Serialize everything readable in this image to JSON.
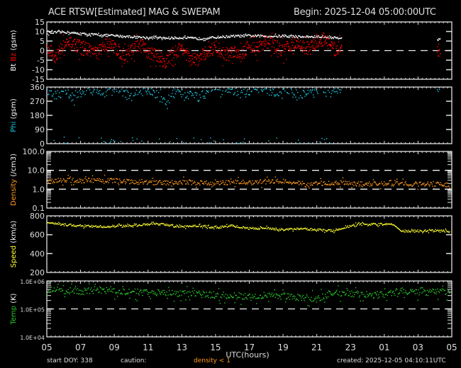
{
  "header": {
    "title": "ACE RTSW[Estimated] MAG & SWEPAM",
    "begin": "Begin: 2025-12-04 05:00:00UTC"
  },
  "footer": {
    "start_doy": "start DOY: 338",
    "caution_label": "caution:",
    "caution_text": "density < 1",
    "created": "created: 2025-12-05 04:10:11UTC"
  },
  "colors": {
    "background": "#000000",
    "axis": "#e0e0e0",
    "bt": "#ffffff",
    "bz": "#ff0000",
    "phi": "#1ec8e6",
    "density": "#ff9a1e",
    "speed": "#ffff32",
    "temp": "#28c828",
    "caution": "#ff9a1e"
  },
  "chart_data": [
    {
      "type": "scatter",
      "panel": "mag",
      "ylabel": [
        "Bt",
        " ",
        "Bz",
        " (gsm)"
      ],
      "ylabel_colors": [
        "#ffffff",
        "#ffffff",
        "#ff0000",
        "#ffffff"
      ],
      "ylim": [
        -15,
        15
      ],
      "yticks": [
        15,
        10,
        5,
        0,
        -5,
        -10,
        -15
      ],
      "ref_lines": [
        0
      ],
      "series": [
        {
          "name": "Bt",
          "color": "#ffffff",
          "x_hours": [
            0,
            1,
            2,
            3,
            4,
            5,
            6,
            7,
            8,
            9,
            10,
            11,
            12,
            13,
            14,
            15,
            16,
            17,
            17.4,
            23.2
          ],
          "values": [
            9.5,
            10,
            9,
            8.5,
            8,
            7.5,
            7,
            6.8,
            7,
            6.5,
            7.2,
            7.8,
            8,
            7.8,
            7.8,
            7.5,
            7.5,
            7,
            7,
            6
          ]
        },
        {
          "name": "Bz",
          "color": "#ff0000",
          "x_hours": [
            0,
            0.5,
            1,
            1.5,
            2,
            2.5,
            3,
            3.5,
            4,
            4.5,
            5,
            5.5,
            6,
            6.5,
            7,
            7.5,
            8,
            8.5,
            9,
            9.5,
            10,
            10.5,
            11,
            11.5,
            12,
            12.5,
            13,
            13.5,
            14,
            14.5,
            15,
            15.5,
            16,
            16.5,
            17,
            17.4,
            23.2
          ],
          "values": [
            2,
            -3,
            3,
            4,
            2,
            1,
            -1,
            4,
            2,
            -2,
            1,
            3,
            -1,
            -2,
            -6,
            -1,
            2,
            -5,
            -4,
            0,
            2,
            -2,
            0,
            -1,
            3,
            1,
            5,
            3,
            0,
            4,
            3,
            1,
            5,
            6,
            0,
            3,
            0
          ]
        }
      ]
    },
    {
      "type": "scatter",
      "panel": "phi",
      "ylabel": [
        "Phi",
        " (gsm)"
      ],
      "ylabel_colors": [
        "#1ec8e6",
        "#ffffff"
      ],
      "ylim": [
        0,
        360
      ],
      "yticks": [
        360,
        270,
        180,
        90,
        0
      ],
      "series": [
        {
          "name": "Phi",
          "color": "#1ec8e6",
          "x_hours": [
            0,
            0.5,
            1,
            1.5,
            2,
            2.5,
            3,
            3.5,
            4,
            4.5,
            5,
            5.5,
            6,
            6.5,
            7,
            7.5,
            8,
            8.5,
            9,
            9.5,
            10,
            10.5,
            11,
            11.5,
            12,
            12.5,
            13,
            13.5,
            14,
            14.5,
            15,
            15.5,
            16,
            16.5,
            17,
            17.4,
            23.2
          ],
          "values": [
            320,
            310,
            340,
            300,
            330,
            350,
            340,
            320,
            345,
            330,
            290,
            340,
            330,
            320,
            260,
            320,
            330,
            310,
            300,
            330,
            350,
            340,
            345,
            320,
            340,
            350,
            345,
            330,
            340,
            350,
            300,
            330,
            340,
            350,
            340,
            335,
            355
          ]
        }
      ]
    },
    {
      "type": "scatter",
      "panel": "density",
      "ylabel": [
        "Density",
        " (/cm3)"
      ],
      "ylabel_colors": [
        "#ff9a1e",
        "#ffffff"
      ],
      "yscale": "log",
      "ylim": [
        0.1,
        100.0
      ],
      "yticks": [
        "100.0",
        "10.0",
        "1.0",
        "0.1"
      ],
      "ref_lines": [
        10,
        1
      ],
      "series": [
        {
          "name": "Density",
          "color": "#ff9a1e",
          "x_hours": [
            0,
            1,
            2,
            3,
            4,
            5,
            6,
            7,
            8,
            9,
            10,
            11,
            12,
            13,
            14,
            15,
            15.5,
            16,
            17,
            17.5,
            18,
            19,
            20,
            21,
            22,
            23,
            23.8
          ],
          "values": [
            2.8,
            3.2,
            2.9,
            3.3,
            3.0,
            2.6,
            2.4,
            2.3,
            2.5,
            2.3,
            2.2,
            2.5,
            2.4,
            2.6,
            2.8,
            2.3,
            1.7,
            2.2,
            2.1,
            2.3,
            2.0,
            2.0,
            2.0,
            2.1,
            2.0,
            2.0,
            1.8
          ]
        }
      ]
    },
    {
      "type": "scatter",
      "panel": "speed",
      "ylabel": [
        "Speed",
        " (km/s)"
      ],
      "ylabel_colors": [
        "#ffff32",
        "#ffffff"
      ],
      "ylim": [
        200,
        800
      ],
      "yticks": [
        800,
        600,
        400,
        200
      ],
      "series": [
        {
          "name": "Speed",
          "color": "#ffff32",
          "x_hours": [
            0,
            1,
            2,
            3,
            4,
            5,
            6,
            7,
            8,
            9,
            10,
            11,
            12,
            13,
            14,
            15,
            16,
            16.5,
            17,
            17.8,
            18.5,
            19,
            20,
            20.5,
            21,
            22,
            23,
            23.8
          ],
          "values": [
            730,
            710,
            700,
            690,
            695,
            700,
            720,
            710,
            690,
            700,
            680,
            700,
            670,
            675,
            660,
            665,
            660,
            650,
            650,
            690,
            720,
            715,
            715,
            715,
            640,
            645,
            650,
            640
          ]
        }
      ]
    },
    {
      "type": "scatter",
      "panel": "temp",
      "ylabel": [
        "Temp",
        " (K)"
      ],
      "ylabel_colors": [
        "#28c828",
        "#ffffff"
      ],
      "yscale": "log",
      "ylim": [
        10000,
        1000000
      ],
      "yticks": [
        "1.0E+06",
        "1.0E+05",
        "1.0E+04"
      ],
      "ref_lines": [
        100000
      ],
      "series": [
        {
          "name": "Temp",
          "color": "#28c828",
          "x_hours": [
            0,
            1,
            2,
            3,
            4,
            5,
            6,
            7,
            8,
            9,
            10,
            11,
            12,
            13,
            14,
            15,
            16,
            16.5,
            17,
            18,
            19,
            20,
            21,
            22,
            23,
            23.8
          ],
          "values": [
            520000,
            470000,
            440000,
            500000,
            430000,
            410000,
            400000,
            390000,
            380000,
            350000,
            330000,
            310000,
            290000,
            320000,
            300000,
            270000,
            240000,
            300000,
            380000,
            370000,
            330000,
            340000,
            480000,
            380000,
            420000,
            430000
          ]
        }
      ]
    }
  ],
  "xaxis": {
    "label": "UTC(hours)",
    "ticks": [
      "05",
      "07",
      "09",
      "11",
      "13",
      "15",
      "17",
      "19",
      "21",
      "23",
      "01",
      "03",
      "05"
    ]
  }
}
